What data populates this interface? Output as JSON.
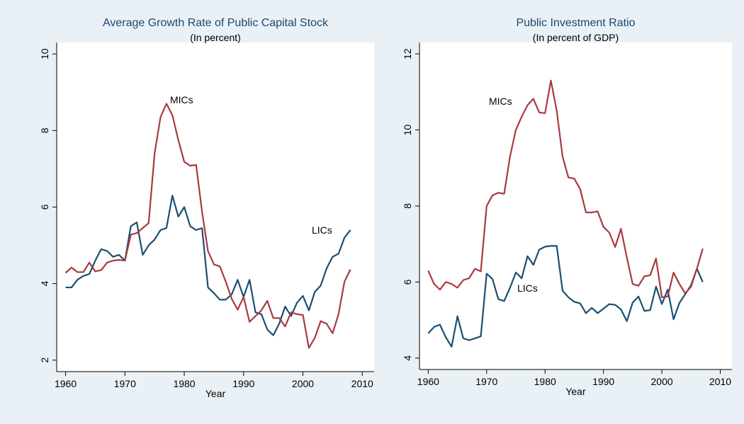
{
  "chart_data": [
    {
      "type": "line",
      "title": "Average Growth Rate of Public Capital Stock",
      "subtitle": "(In percent)",
      "x_label": "Year",
      "xlim": [
        1958.5,
        2012
      ],
      "xticks": [
        1960,
        1970,
        1980,
        1990,
        2000,
        2010
      ],
      "ylim": [
        1.7,
        10.3
      ],
      "yticks": [
        2,
        4,
        6,
        8,
        10
      ],
      "x": [
        1960,
        1961,
        1962,
        1963,
        1964,
        1965,
        1966,
        1967,
        1968,
        1969,
        1970,
        1971,
        1972,
        1973,
        1974,
        1975,
        1976,
        1977,
        1978,
        1979,
        1980,
        1981,
        1982,
        1983,
        1984,
        1985,
        1986,
        1987,
        1988,
        1989,
        1990,
        1991,
        1992,
        1993,
        1994,
        1995,
        1996,
        1997,
        1998,
        1999,
        2000,
        2001,
        2002,
        2003,
        2004,
        2005,
        2006,
        2007,
        2008
      ],
      "series": [
        {
          "name": "LICs",
          "color": "#1a4f72",
          "values": [
            3.9,
            3.9,
            4.1,
            4.2,
            4.25,
            4.6,
            4.9,
            4.85,
            4.7,
            4.75,
            4.6,
            5.5,
            5.6,
            4.75,
            5.0,
            5.15,
            5.4,
            5.45,
            6.3,
            5.75,
            6.0,
            5.5,
            5.4,
            5.45,
            3.9,
            3.75,
            3.58,
            3.58,
            3.72,
            4.1,
            3.65,
            4.1,
            3.25,
            3.2,
            2.8,
            2.65,
            2.95,
            3.4,
            3.15,
            3.5,
            3.68,
            3.3,
            3.78,
            3.95,
            4.4,
            4.7,
            4.78,
            5.2,
            5.4
          ]
        },
        {
          "name": "MICs",
          "color": "#a83a3f",
          "values": [
            4.28,
            4.42,
            4.3,
            4.3,
            4.55,
            4.32,
            4.35,
            4.55,
            4.6,
            4.62,
            4.6,
            5.28,
            5.32,
            5.45,
            5.58,
            7.4,
            8.35,
            8.7,
            8.4,
            7.75,
            7.18,
            7.08,
            7.1,
            5.88,
            4.85,
            4.5,
            4.45,
            4.05,
            3.6,
            3.32,
            3.65,
            3.0,
            3.15,
            3.3,
            3.55,
            3.1,
            3.1,
            2.88,
            3.25,
            3.2,
            3.18,
            2.32,
            2.58,
            3.02,
            2.95,
            2.7,
            3.2,
            4.05,
            4.37
          ]
        }
      ]
    },
    {
      "type": "line",
      "title": "Public Investment Ratio",
      "subtitle": "(In percent of GDP)",
      "x_label": "Year",
      "xlim": [
        1958.5,
        2012
      ],
      "xticks": [
        1960,
        1970,
        1980,
        1990,
        2000,
        2010
      ],
      "ylim": [
        3.7,
        12.3
      ],
      "yticks": [
        4,
        6,
        8,
        10,
        12
      ],
      "x": [
        1960,
        1961,
        1962,
        1963,
        1964,
        1965,
        1966,
        1967,
        1968,
        1969,
        1970,
        1971,
        1972,
        1973,
        1974,
        1975,
        1976,
        1977,
        1978,
        1979,
        1980,
        1981,
        1982,
        1983,
        1984,
        1985,
        1986,
        1987,
        1988,
        1989,
        1990,
        1991,
        1992,
        1993,
        1994,
        1995,
        1996,
        1997,
        1998,
        1999,
        2000,
        2001,
        2002,
        2003,
        2004,
        2005,
        2006,
        2007
      ],
      "series": [
        {
          "name": "LICs",
          "color": "#1a4f72",
          "values": [
            4.65,
            4.82,
            4.88,
            4.55,
            4.3,
            5.1,
            4.52,
            4.47,
            4.52,
            4.57,
            6.22,
            6.08,
            5.55,
            5.5,
            5.85,
            6.25,
            6.1,
            6.68,
            6.45,
            6.85,
            6.93,
            6.95,
            6.95,
            5.77,
            5.6,
            5.48,
            5.44,
            5.18,
            5.32,
            5.18,
            5.3,
            5.42,
            5.4,
            5.28,
            4.97,
            5.46,
            5.62,
            5.24,
            5.26,
            5.88,
            5.42,
            5.8,
            5.02,
            5.45,
            5.68,
            5.92,
            6.35,
            6.0
          ]
        },
        {
          "name": "MICs",
          "color": "#a83a3f",
          "values": [
            6.3,
            5.95,
            5.8,
            6.0,
            5.95,
            5.85,
            6.05,
            6.1,
            6.35,
            6.28,
            8.0,
            8.28,
            8.35,
            8.32,
            9.3,
            10.0,
            10.35,
            10.65,
            10.82,
            10.46,
            10.44,
            11.3,
            10.5,
            9.3,
            8.75,
            8.72,
            8.45,
            7.83,
            7.83,
            7.86,
            7.45,
            7.3,
            6.92,
            7.4,
            6.65,
            5.95,
            5.9,
            6.15,
            6.18,
            6.62,
            5.6,
            5.62,
            6.25,
            5.95,
            5.7,
            5.88,
            6.35,
            6.88
          ]
        }
      ]
    }
  ]
}
